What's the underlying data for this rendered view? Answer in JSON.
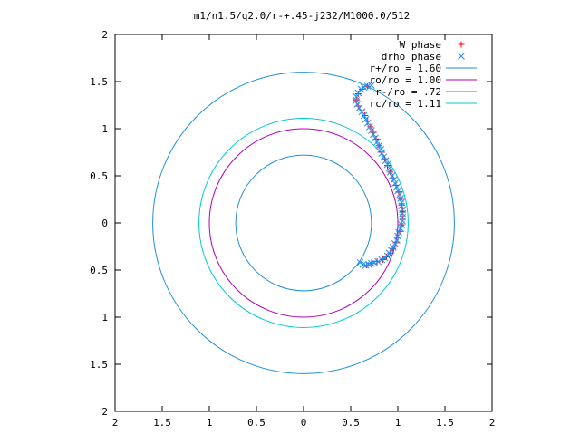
{
  "chart_data": {
    "type": "scatter",
    "title": "m1/n1.5/q2.0/r-+.45-j232/M1000.0/512",
    "xlabel": "",
    "ylabel": "",
    "xlim": [
      -2,
      2
    ],
    "ylim": [
      -2,
      2
    ],
    "x_ticks": [
      {
        "value": -2,
        "label": "2"
      },
      {
        "value": -1.5,
        "label": "1.5"
      },
      {
        "value": -1,
        "label": "1"
      },
      {
        "value": -0.5,
        "label": "0.5"
      },
      {
        "value": 0,
        "label": "0"
      },
      {
        "value": 0.5,
        "label": "0.5"
      },
      {
        "value": 1,
        "label": "1"
      },
      {
        "value": 1.5,
        "label": "1.5"
      },
      {
        "value": 2,
        "label": "2"
      }
    ],
    "y_ticks": [
      {
        "value": 2,
        "label": "2"
      },
      {
        "value": 1.5,
        "label": "1.5"
      },
      {
        "value": 1,
        "label": "1"
      },
      {
        "value": 0.5,
        "label": "0.5"
      },
      {
        "value": 0,
        "label": "0"
      },
      {
        "value": -0.5,
        "label": "0.5"
      },
      {
        "value": -1,
        "label": "1"
      },
      {
        "value": -1.5,
        "label": "1.5"
      },
      {
        "value": -2,
        "label": "2"
      }
    ],
    "grid": false,
    "legend_position": "top-right",
    "series": [
      {
        "name": "W phase",
        "marker": "plus",
        "color": "#ff0000",
        "points": [
          [
            0.67,
            -0.45
          ],
          [
            0.72,
            -0.43
          ],
          [
            0.78,
            -0.41
          ],
          [
            0.84,
            -0.39
          ],
          [
            0.88,
            -0.36
          ],
          [
            0.92,
            -0.32
          ],
          [
            0.95,
            -0.27
          ],
          [
            0.98,
            -0.21
          ],
          [
            1.0,
            -0.15
          ],
          [
            1.02,
            -0.09
          ],
          [
            1.04,
            -0.02
          ],
          [
            1.05,
            0.05
          ],
          [
            1.05,
            0.12
          ],
          [
            1.04,
            0.19
          ],
          [
            1.03,
            0.26
          ],
          [
            1.01,
            0.33
          ],
          [
            0.98,
            0.4
          ],
          [
            0.95,
            0.47
          ],
          [
            0.92,
            0.54
          ],
          [
            0.89,
            0.61
          ],
          [
            0.86,
            0.68
          ],
          [
            0.83,
            0.75
          ],
          [
            0.8,
            0.82
          ],
          [
            0.77,
            0.89
          ],
          [
            0.74,
            0.96
          ],
          [
            0.71,
            1.02
          ],
          [
            0.68,
            1.08
          ],
          [
            0.65,
            1.14
          ],
          [
            0.62,
            1.19
          ],
          [
            0.58,
            1.24
          ],
          [
            0.56,
            1.3
          ],
          [
            0.58,
            1.37
          ],
          [
            0.62,
            1.42
          ],
          [
            0.68,
            1.45
          ]
        ]
      },
      {
        "name": "drho phase",
        "marker": "cross",
        "color": "#1e90ff",
        "points": [
          [
            0.6,
            -0.42
          ],
          [
            0.63,
            -0.44
          ],
          [
            0.66,
            -0.45
          ],
          [
            0.69,
            -0.44
          ],
          [
            0.72,
            -0.43
          ],
          [
            0.75,
            -0.42
          ],
          [
            0.79,
            -0.41
          ],
          [
            0.83,
            -0.39
          ],
          [
            0.86,
            -0.37
          ],
          [
            0.89,
            -0.35
          ],
          [
            0.91,
            -0.32
          ],
          [
            0.93,
            -0.29
          ],
          [
            0.95,
            -0.26
          ],
          [
            0.97,
            -0.22
          ],
          [
            0.99,
            -0.18
          ],
          [
            1.0,
            -0.14
          ],
          [
            1.01,
            -0.1
          ],
          [
            1.03,
            -0.06
          ],
          [
            1.04,
            -0.02
          ],
          [
            1.05,
            0.02
          ],
          [
            1.05,
            0.06
          ],
          [
            1.05,
            0.1
          ],
          [
            1.05,
            0.14
          ],
          [
            1.04,
            0.18
          ],
          [
            1.04,
            0.22
          ],
          [
            1.03,
            0.26
          ],
          [
            1.02,
            0.3
          ],
          [
            1.0,
            0.34
          ],
          [
            0.99,
            0.38
          ],
          [
            0.97,
            0.42
          ],
          [
            0.96,
            0.46
          ],
          [
            0.94,
            0.5
          ],
          [
            0.92,
            0.54
          ],
          [
            0.91,
            0.58
          ],
          [
            0.89,
            0.62
          ],
          [
            0.87,
            0.66
          ],
          [
            0.85,
            0.7
          ],
          [
            0.83,
            0.74
          ],
          [
            0.82,
            0.78
          ],
          [
            0.8,
            0.82
          ],
          [
            0.78,
            0.86
          ],
          [
            0.76,
            0.9
          ],
          [
            0.74,
            0.94
          ],
          [
            0.72,
            0.98
          ],
          [
            0.7,
            1.02
          ],
          [
            0.68,
            1.06
          ],
          [
            0.66,
            1.1
          ],
          [
            0.64,
            1.14
          ],
          [
            0.62,
            1.18
          ],
          [
            0.59,
            1.22
          ],
          [
            0.57,
            1.26
          ],
          [
            0.56,
            1.3
          ],
          [
            0.56,
            1.34
          ],
          [
            0.58,
            1.38
          ],
          [
            0.61,
            1.42
          ],
          [
            0.64,
            1.44
          ],
          [
            0.68,
            1.45
          ],
          [
            0.72,
            1.46
          ]
        ]
      },
      {
        "name": "r+/ro = 1.60",
        "type": "circle",
        "radius": 1.6,
        "color": "#1f8fd6"
      },
      {
        "name": "ro/ro = 1.00",
        "type": "circle",
        "radius": 1.0,
        "color": "#b000b0"
      },
      {
        "name": "r-/ro = .72",
        "type": "circle",
        "radius": 0.72,
        "color": "#1f8fd6"
      },
      {
        "name": "rc/ro = 1.11",
        "type": "circle",
        "radius": 1.11,
        "color": "#00cccc"
      }
    ]
  }
}
